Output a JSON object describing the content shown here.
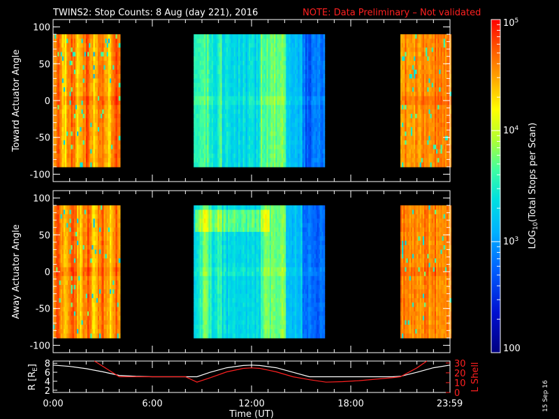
{
  "title": {
    "main": "TWINS2: Stop Counts:  8 Aug (day 221), 2016",
    "note": "NOTE: Data Preliminary – Not validated"
  },
  "footer_date": "15 Sep 16",
  "colors": {
    "background": "#000000",
    "axes": "#ffffff",
    "note": "#ff2020",
    "rsat_line": "#ffffff",
    "lshell_line": "#ff2020"
  },
  "chart_data": [
    {
      "type": "heatmap",
      "name": "toward",
      "ylabel": "Toward Actuator Angle",
      "ylim": [
        -110,
        110
      ],
      "yticks": [
        100,
        50,
        0,
        -50,
        -100
      ],
      "xlim": [
        0,
        24
      ],
      "angle_range": [
        -90,
        90
      ],
      "coverage_hours": [
        [
          0,
          4
        ],
        [
          8.5,
          16.4
        ],
        [
          21,
          24
        ]
      ],
      "colorscale": "log10 counts, 100 to 100000"
    },
    {
      "type": "heatmap",
      "name": "away",
      "ylabel": "Away Actuator Angle",
      "ylim": [
        -110,
        110
      ],
      "yticks": [
        100,
        50,
        0,
        -50,
        -100
      ],
      "xlim": [
        0,
        24
      ],
      "angle_range": [
        -90,
        90
      ],
      "coverage_hours": [
        [
          0,
          4
        ],
        [
          8.5,
          16.4
        ],
        [
          21,
          24
        ]
      ],
      "colorscale": "log10 counts, 100 to 100000"
    },
    {
      "type": "line",
      "name": "orbit",
      "xlim": [
        0,
        24
      ],
      "xticks": [
        0,
        6,
        12,
        18,
        23.983
      ],
      "xtick_labels": [
        "0:00",
        "6:00",
        "12:00",
        "18:00",
        "23:59"
      ],
      "xlabel": "Time (UT)",
      "ylabel_left": "R [R",
      "ylabel_left_sub": "E",
      "ylabel_left_end": "]",
      "ylim_left": [
        1.5,
        8.5
      ],
      "yticks_left": [
        2,
        4,
        6,
        8
      ],
      "ylabel_right": "L Shell",
      "ylim_right": [
        0,
        32
      ],
      "yticks_right": [
        0,
        10,
        20,
        30
      ],
      "series": [
        {
          "name": "R [RE]",
          "axis": "left",
          "color": "#ffffff",
          "x": [
            0,
            1,
            2,
            3,
            4,
            5,
            6,
            7,
            8,
            8.7,
            9.5,
            10.5,
            11.5,
            12,
            12.5,
            13.5,
            14.5,
            15.5,
            16.5,
            17.5,
            18.5,
            19.5,
            20.5,
            21,
            22,
            23,
            24
          ],
          "y": [
            7.6,
            7.3,
            6.8,
            6.1,
            5.3,
            5.1,
            5.0,
            5.0,
            5.0,
            5.0,
            6.0,
            7.0,
            7.5,
            7.6,
            7.5,
            7.0,
            6.0,
            5.0,
            5.0,
            5.0,
            5.0,
            5.0,
            5.0,
            5.1,
            6.0,
            7.0,
            7.6
          ]
        },
        {
          "name": "L Shell",
          "axis": "right",
          "color": "#ff2020",
          "x": [
            2.5,
            4,
            5,
            6,
            7,
            8,
            8.7,
            9.5,
            10.5,
            11.5,
            12,
            12.5,
            13.5,
            14.5,
            15.5,
            16.5,
            17.5,
            18.5,
            19.5,
            20.5,
            21,
            22,
            22.6
          ],
          "y": [
            32,
            16,
            16,
            16,
            16,
            16,
            10.5,
            15,
            21,
            24.5,
            25,
            24.5,
            21,
            16,
            13,
            10.5,
            11,
            12,
            13.5,
            15,
            16,
            25,
            32
          ]
        }
      ]
    }
  ],
  "colorbar": {
    "label": "LOG",
    "label_sub": "10",
    "label_rest": "(Total Stops per Scan)",
    "ticks": [
      {
        "value": 100000,
        "base": "10",
        "exp": "5"
      },
      {
        "value": 10000,
        "base": "10",
        "exp": "4"
      },
      {
        "value": 1000,
        "base": "10",
        "exp": "3"
      },
      {
        "value": 100,
        "base": "100",
        "exp": ""
      }
    ],
    "range": [
      100,
      100000
    ]
  }
}
